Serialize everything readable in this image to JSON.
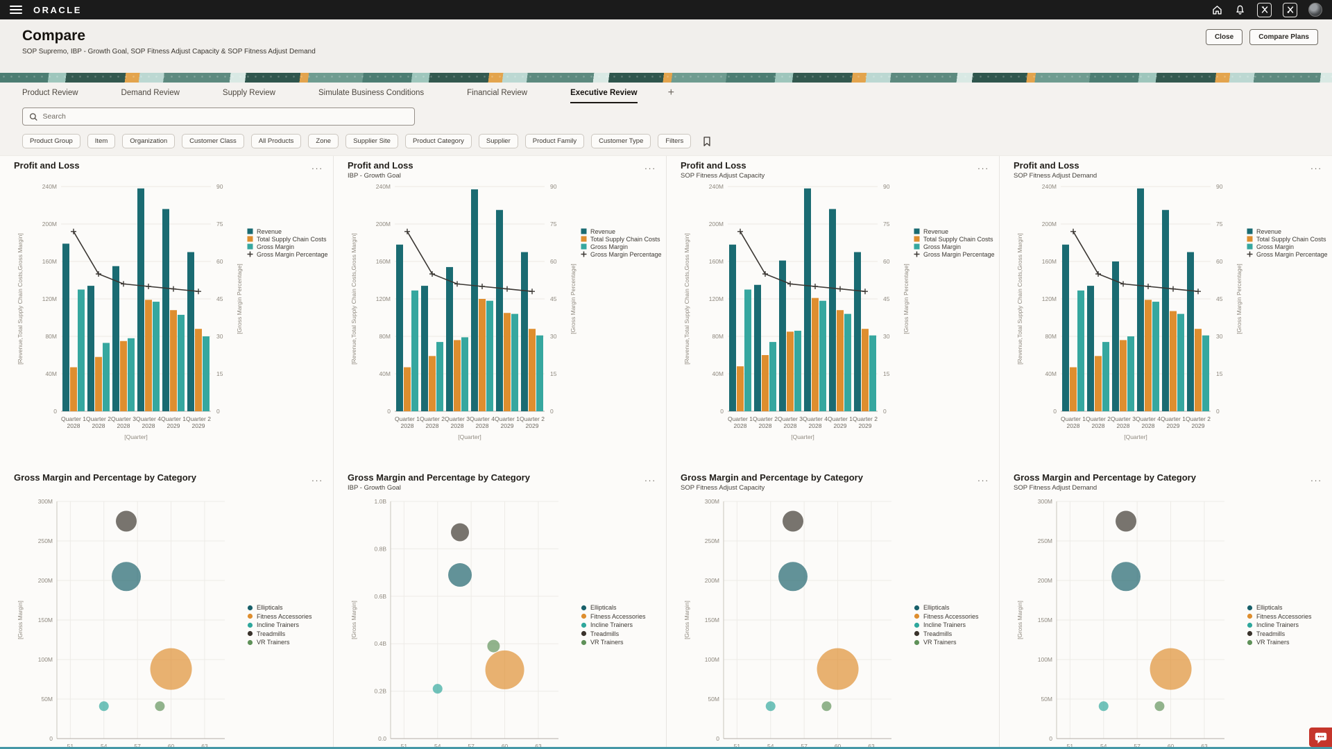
{
  "topbar": {
    "brand": "ORACLE",
    "icons": {
      "menu": "hamburger-bars",
      "home": "house-outline",
      "notifications": "bell-outline",
      "tool_1": "boxed-glyph-1",
      "tool_2": "boxed-glyph-2",
      "avatar": "user-photo",
      "search": "magnifier",
      "bookmark": "bookmark-outline",
      "panel_menu": "ellipsis",
      "add_tab": "plus",
      "feedback": "chat-bubble"
    }
  },
  "header": {
    "title": "Compare",
    "subtitle": "SOP Supremo, IBP - Growth Goal, SOP Fitness Adjust Capacity & SOP Fitness Adjust Demand",
    "buttons": {
      "close": "Close",
      "compare_plans": "Compare Plans"
    }
  },
  "tabs": {
    "items": [
      {
        "label": "Product Review",
        "active": false
      },
      {
        "label": "Demand Review",
        "active": false
      },
      {
        "label": "Supply Review",
        "active": false
      },
      {
        "label": "Simulate Business Conditions",
        "active": false
      },
      {
        "label": "Financial Review",
        "active": false
      },
      {
        "label": "Executive Review",
        "active": true
      }
    ],
    "add_label": "+"
  },
  "search": {
    "placeholder": "Search"
  },
  "filters": {
    "chips": [
      "Product Group",
      "Item",
      "Organization",
      "Customer Class",
      "All Products",
      "Zone",
      "Supplier Site",
      "Product Category",
      "Supplier",
      "Product Family",
      "Customer Type"
    ],
    "more_label": "Filters"
  },
  "colors": {
    "topbar_bg": "#1b1b1b",
    "page_bg": "#f4f2ef",
    "panel_bg": "#fcfbf9",
    "revenue_teal": "#1A6B72",
    "costs_orange": "#DE8E2F",
    "margin_teal": "#36A79F",
    "line_dark": "#3B3733",
    "bottom_strip": "#4597A6",
    "feedback_red": "#C5352B"
  },
  "chart_data": [
    {
      "id": "pl-sop-supremo",
      "type": "combo",
      "title": "Profit and Loss",
      "subtitle": "",
      "xlabel": "[Quarter]",
      "ylabel_left": "[Revenue,Total Supply Chain Costs,Gross Margin]",
      "ylabel_right": "[Gross Margin Percentage]",
      "y_left": {
        "max": 240,
        "step": 40,
        "suffix": "M"
      },
      "y_right": {
        "max": 90,
        "step": 15
      },
      "categories": [
        [
          "Quarter 1",
          "2028"
        ],
        [
          "Quarter 2",
          "2028"
        ],
        [
          "Quarter 3",
          "2028"
        ],
        [
          "Quarter 4",
          "2028"
        ],
        [
          "Quarter 1",
          "2029"
        ],
        [
          "Quarter 2",
          "2029"
        ]
      ],
      "series": [
        {
          "name": "Revenue",
          "type": "bar",
          "color": "#1A6B72",
          "values": [
            179,
            134,
            155,
            238,
            216,
            170
          ]
        },
        {
          "name": "Total Supply Chain Costs",
          "type": "bar",
          "color": "#DE8E2F",
          "values": [
            47,
            58,
            75,
            119,
            108,
            88
          ]
        },
        {
          "name": "Gross Margin",
          "type": "bar",
          "color": "#36A79F",
          "values": [
            130,
            73,
            78,
            117,
            103,
            80
          ]
        },
        {
          "name": "Gross Margin Percentage",
          "type": "line",
          "axis": "right",
          "color": "#3B3733",
          "values": [
            72,
            55,
            51,
            50,
            49,
            48
          ]
        }
      ]
    },
    {
      "id": "pl-ibp-growth-goal",
      "type": "combo",
      "title": "Profit and Loss",
      "subtitle": "IBP - Growth Goal",
      "xlabel": "[Quarter]",
      "ylabel_left": "[Revenue,Total Supply Chain Costs,Gross Margin]",
      "ylabel_right": "[Gross Margin Percentage]",
      "y_left": {
        "max": 240,
        "step": 40,
        "suffix": "M"
      },
      "y_right": {
        "max": 90,
        "step": 15
      },
      "categories": [
        [
          "Quarter 1",
          "2028"
        ],
        [
          "Quarter 2",
          "2028"
        ],
        [
          "Quarter 3",
          "2028"
        ],
        [
          "Quarter 4",
          "2028"
        ],
        [
          "Quarter 1",
          "2029"
        ],
        [
          "Quarter 2",
          "2029"
        ]
      ],
      "series": [
        {
          "name": "Revenue",
          "type": "bar",
          "color": "#1A6B72",
          "values": [
            178,
            134,
            154,
            237,
            215,
            170
          ]
        },
        {
          "name": "Total Supply Chain Costs",
          "type": "bar",
          "color": "#DE8E2F",
          "values": [
            47,
            59,
            76,
            120,
            105,
            88
          ]
        },
        {
          "name": "Gross Margin",
          "type": "bar",
          "color": "#36A79F",
          "values": [
            129,
            74,
            79,
            118,
            104,
            81
          ]
        },
        {
          "name": "Gross Margin Percentage",
          "type": "line",
          "axis": "right",
          "color": "#3B3733",
          "values": [
            72,
            55,
            51,
            50,
            49,
            48
          ]
        }
      ]
    },
    {
      "id": "pl-sop-fitness-adjust-capacity",
      "type": "combo",
      "title": "Profit and Loss",
      "subtitle": "SOP Fitness Adjust Capacity",
      "xlabel": "[Quarter]",
      "ylabel_left": "[Revenue,Total Supply Chain Costs,Gross Margin]",
      "ylabel_right": "[Gross Margin Percentage]",
      "y_left": {
        "max": 240,
        "step": 40,
        "suffix": "M"
      },
      "y_right": {
        "max": 90,
        "step": 15
      },
      "categories": [
        [
          "Quarter 1",
          "2028"
        ],
        [
          "Quarter 2",
          "2028"
        ],
        [
          "Quarter 3",
          "2028"
        ],
        [
          "Quarter 4",
          "2028"
        ],
        [
          "Quarter 1",
          "2029"
        ],
        [
          "Quarter 2",
          "2029"
        ]
      ],
      "series": [
        {
          "name": "Revenue",
          "type": "bar",
          "color": "#1A6B72",
          "values": [
            178,
            135,
            161,
            238,
            216,
            170
          ]
        },
        {
          "name": "Total Supply Chain Costs",
          "type": "bar",
          "color": "#DE8E2F",
          "values": [
            48,
            60,
            85,
            121,
            108,
            88
          ]
        },
        {
          "name": "Gross Margin",
          "type": "bar",
          "color": "#36A79F",
          "values": [
            130,
            74,
            86,
            118,
            104,
            81
          ]
        },
        {
          "name": "Gross Margin Percentage",
          "type": "line",
          "axis": "right",
          "color": "#3B3733",
          "values": [
            72,
            55,
            51,
            50,
            49,
            48
          ]
        }
      ]
    },
    {
      "id": "pl-sop-fitness-adjust-demand",
      "type": "combo",
      "title": "Profit and Loss",
      "subtitle": "SOP Fitness Adjust Demand",
      "xlabel": "[Quarter]",
      "ylabel_left": "[Revenue,Total Supply Chain Costs,Gross Margin]",
      "ylabel_right": "[Gross Margin Percentage]",
      "y_left": {
        "max": 240,
        "step": 40,
        "suffix": "M"
      },
      "y_right": {
        "max": 90,
        "step": 15
      },
      "categories": [
        [
          "Quarter 1",
          "2028"
        ],
        [
          "Quarter 2",
          "2028"
        ],
        [
          "Quarter 3",
          "2028"
        ],
        [
          "Quarter 4",
          "2028"
        ],
        [
          "Quarter 1",
          "2029"
        ],
        [
          "Quarter 2",
          "2029"
        ]
      ],
      "series": [
        {
          "name": "Revenue",
          "type": "bar",
          "color": "#1A6B72",
          "values": [
            178,
            134,
            160,
            238,
            215,
            170
          ]
        },
        {
          "name": "Total Supply Chain Costs",
          "type": "bar",
          "color": "#DE8E2F",
          "values": [
            47,
            59,
            76,
            119,
            107,
            88
          ]
        },
        {
          "name": "Gross Margin",
          "type": "bar",
          "color": "#36A79F",
          "values": [
            129,
            74,
            80,
            117,
            104,
            81
          ]
        },
        {
          "name": "Gross Margin Percentage",
          "type": "line",
          "axis": "right",
          "color": "#3B3733",
          "values": [
            72,
            55,
            51,
            50,
            49,
            48
          ]
        }
      ]
    },
    {
      "id": "gm-sop-supremo",
      "type": "bubble",
      "title": "Gross Margin and Percentage by Category",
      "subtitle": "",
      "ylabel": "[Gross Margin]",
      "y": {
        "max": 300,
        "step": 50,
        "suffix": "M"
      },
      "x_ticks": [
        51,
        54,
        57,
        60,
        63
      ],
      "x_domain": [
        49.8,
        64.8
      ],
      "points": [
        {
          "name": "Ellipticals",
          "color": "#19606A",
          "x": 56,
          "y": 205,
          "r": 21
        },
        {
          "name": "Fitness Accessories",
          "color": "#DE8E2F",
          "x": 60,
          "y": 88,
          "r": 30
        },
        {
          "name": "Incline Trainers",
          "color": "#2FA79C",
          "x": 54,
          "y": 41,
          "r": 7
        },
        {
          "name": "Treadmills",
          "color": "#3A332C",
          "x": 56,
          "y": 275,
          "r": 15
        },
        {
          "name": "VR Trainers",
          "color": "#5F9159",
          "x": 59,
          "y": 41,
          "r": 7
        }
      ]
    },
    {
      "id": "gm-ibp-growth-goal",
      "type": "bubble",
      "title": "Gross Margin and Percentage by Category",
      "subtitle": "IBP - Growth Goal",
      "ylabel": "[Gross Margin]",
      "y": {
        "max": 1.0,
        "step": 0.2,
        "suffix": "B",
        "decimals": 1
      },
      "x_ticks": [
        51,
        54,
        57,
        60,
        63
      ],
      "x_domain": [
        49.8,
        64.8
      ],
      "points": [
        {
          "name": "Ellipticals",
          "color": "#19606A",
          "x": 56,
          "y": 0.69,
          "r": 17
        },
        {
          "name": "Fitness Accessories",
          "color": "#DE8E2F",
          "x": 60,
          "y": 0.29,
          "r": 28
        },
        {
          "name": "Incline Trainers",
          "color": "#2FA79C",
          "x": 54,
          "y": 0.21,
          "r": 7
        },
        {
          "name": "Treadmills",
          "color": "#3A332C",
          "x": 56,
          "y": 0.87,
          "r": 13
        },
        {
          "name": "VR Trainers",
          "color": "#5F9159",
          "x": 59,
          "y": 0.39,
          "r": 9
        }
      ]
    },
    {
      "id": "gm-sop-fitness-adjust-capacity",
      "type": "bubble",
      "title": "Gross Margin and Percentage by Category",
      "subtitle": "SOP Fitness Adjust Capacity",
      "ylabel": "[Gross Margin]",
      "y": {
        "max": 300,
        "step": 50,
        "suffix": "M"
      },
      "x_ticks": [
        51,
        54,
        57,
        60,
        63
      ],
      "x_domain": [
        49.8,
        64.8
      ],
      "points": [
        {
          "name": "Ellipticals",
          "color": "#19606A",
          "x": 56,
          "y": 205,
          "r": 21
        },
        {
          "name": "Fitness Accessories",
          "color": "#DE8E2F",
          "x": 60,
          "y": 88,
          "r": 30
        },
        {
          "name": "Incline Trainers",
          "color": "#2FA79C",
          "x": 54,
          "y": 41,
          "r": 7
        },
        {
          "name": "Treadmills",
          "color": "#3A332C",
          "x": 56,
          "y": 275,
          "r": 15
        },
        {
          "name": "VR Trainers",
          "color": "#5F9159",
          "x": 59,
          "y": 41,
          "r": 7
        }
      ]
    },
    {
      "id": "gm-sop-fitness-adjust-demand",
      "type": "bubble",
      "title": "Gross Margin and Percentage by Category",
      "subtitle": "SOP Fitness Adjust Demand",
      "ylabel": "[Gross Margin]",
      "y": {
        "max": 300,
        "step": 50,
        "suffix": "M"
      },
      "x_ticks": [
        51,
        54,
        57,
        60,
        63
      ],
      "x_domain": [
        49.8,
        64.8
      ],
      "points": [
        {
          "name": "Ellipticals",
          "color": "#19606A",
          "x": 56,
          "y": 205,
          "r": 21
        },
        {
          "name": "Fitness Accessories",
          "color": "#DE8E2F",
          "x": 60,
          "y": 88,
          "r": 30
        },
        {
          "name": "Incline Trainers",
          "color": "#2FA79C",
          "x": 54,
          "y": 41,
          "r": 7
        },
        {
          "name": "Treadmills",
          "color": "#3A332C",
          "x": 56,
          "y": 275,
          "r": 15
        },
        {
          "name": "VR Trainers",
          "color": "#5F9159",
          "x": 59,
          "y": 41,
          "r": 7
        }
      ]
    }
  ]
}
